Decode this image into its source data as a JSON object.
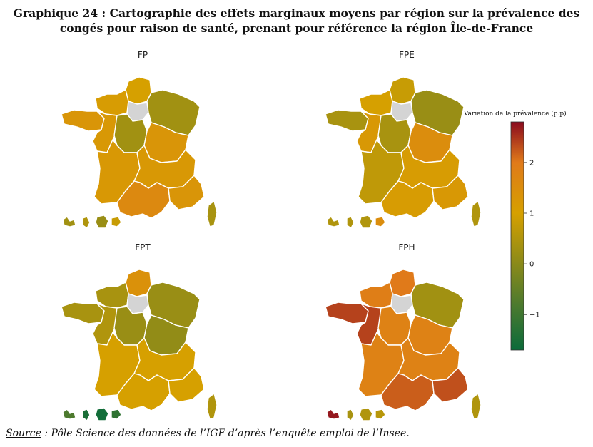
{
  "title": {
    "line1": "Graphique 24 : Cartographie des effets marginaux moyens par région sur la prévalence des",
    "line2": "congés pour raison de santé, prenant pour référence la région Île-de-France"
  },
  "source": {
    "label": "Source",
    "text": " : Pôle Science des données de l’IGF d’après l’enquête emploi de l’Insee."
  },
  "chart_data": {
    "type": "heatmap",
    "subtype": "choropleth",
    "reference_region": "Île-de-France",
    "reference_color": "#d4d4d4",
    "colorbar": {
      "title": "Variation de la prévalence (p.p)",
      "range": [
        -1.7,
        2.8
      ],
      "ticks": [
        -1,
        0,
        1,
        2
      ],
      "tick_labels": [
        "−1",
        "0",
        "1",
        "2"
      ],
      "colors": [
        {
          "value": -1.7,
          "color": "#0b6b3a"
        },
        {
          "value": -0.8,
          "color": "#4d7a2e"
        },
        {
          "value": 0.0,
          "color": "#8a8a1a"
        },
        {
          "value": 1.0,
          "color": "#d6a000"
        },
        {
          "value": 2.0,
          "color": "#e07a1a"
        },
        {
          "value": 2.8,
          "color": "#8a0a1e"
        }
      ]
    },
    "maps": [
      {
        "title": "FP",
        "regions": {
          "Hauts-de-France": 1.0,
          "Normandie": 1.1,
          "Bretagne": 1.3,
          "Pays de la Loire": 1.2,
          "Centre-Val de Loire": 0.3,
          "Grand Est": 0.3,
          "Bourgogne-Franche-Comté": 1.3,
          "Nouvelle-Aquitaine": 1.2,
          "Auvergne-Rhône-Alpes": 1.2,
          "Occitanie": 1.6,
          "Provence-Alpes-Côte d'Azur": 1.3,
          "Corse": 0.4,
          "Guadeloupe": 0.3,
          "Martinique": 0.5,
          "Guyane": 0.2,
          "La Réunion": 0.8
        }
      },
      {
        "title": "FPE",
        "regions": {
          "Hauts-de-France": 0.8,
          "Normandie": 1.0,
          "Bretagne": 0.4,
          "Pays de la Loire": 1.2,
          "Centre-Val de Loire": 0.4,
          "Grand Est": 0.2,
          "Bourgogne-Franche-Comté": 1.5,
          "Nouvelle-Aquitaine": 0.7,
          "Auvergne-Rhône-Alpes": 1.1,
          "Occitanie": 1.1,
          "Provence-Alpes-Côte d'Azur": 1.2,
          "Corse": 0.5,
          "Guadeloupe": 0.5,
          "Martinique": 0.5,
          "Guyane": 0.5,
          "La Réunion": 1.5
        }
      },
      {
        "title": "FPT",
        "regions": {
          "Hauts-de-France": 1.4,
          "Normandie": 0.4,
          "Bretagne": 0.4,
          "Pays de la Loire": 0.5,
          "Centre-Val de Loire": 0.2,
          "Grand Est": 0.2,
          "Bourgogne-Franche-Comté": 0.1,
          "Nouvelle-Aquitaine": 1.0,
          "Auvergne-Rhône-Alpes": 1.0,
          "Occitanie": 1.0,
          "Provence-Alpes-Côte d'Azur": 1.0,
          "Corse": 0.5,
          "Guadeloupe": -0.8,
          "Martinique": -1.5,
          "Guyane": -1.6,
          "La Réunion": -1.2
        }
      },
      {
        "title": "FPH",
        "regions": {
          "Hauts-de-France": 2.0,
          "Normandie": 1.9,
          "Bretagne": 2.4,
          "Pays de la Loire": 2.4,
          "Centre-Val de Loire": 1.8,
          "Grand Est": 0.3,
          "Bourgogne-Franche-Comté": 1.8,
          "Nouvelle-Aquitaine": 1.8,
          "Auvergne-Rhône-Alpes": 1.8,
          "Occitanie": 2.2,
          "Provence-Alpes-Côte d'Azur": 2.3,
          "Corse": 0.5,
          "Guadeloupe": 2.7,
          "Martinique": 0.4,
          "Guyane": 0.5,
          "La Réunion": 0.6
        }
      }
    ]
  }
}
